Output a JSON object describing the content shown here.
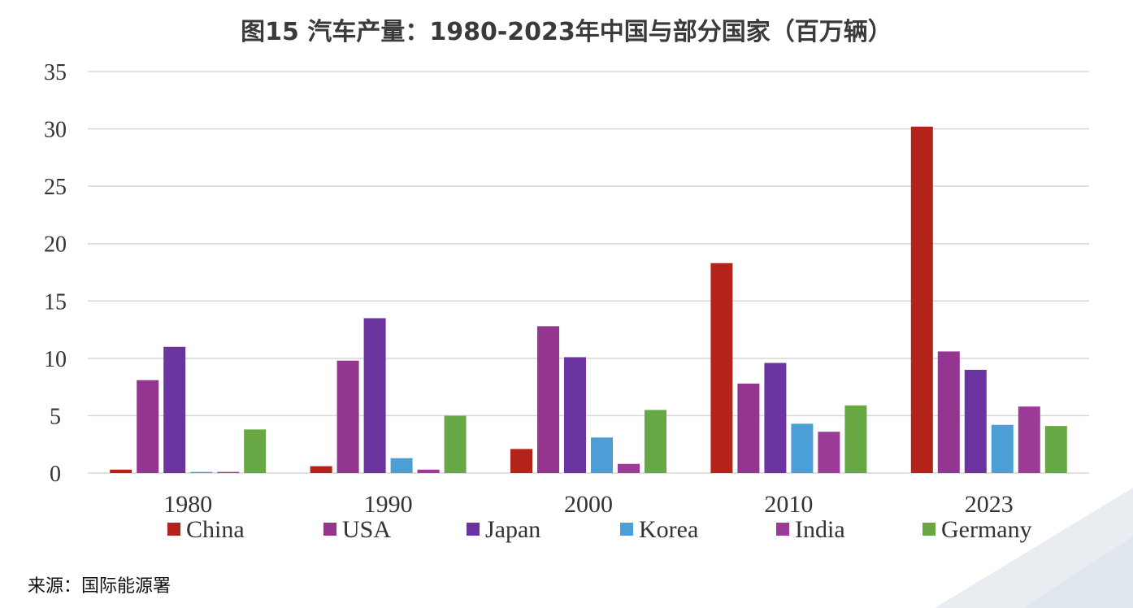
{
  "colors": {
    "China": "#b3231a",
    "USA": "#94368f",
    "Japan": "#6c34a0",
    "Korea": "#4b9fd6",
    "India": "#9b3a97",
    "Germany": "#67a844",
    "grid": "#d6d6d6",
    "axis_text": "#333333"
  },
  "chart_data": {
    "type": "bar",
    "title": "图15 汽车产量：1980-2023年中国与部分国家（百万辆）",
    "categories": [
      "1980",
      "1990",
      "2000",
      "2010",
      "2023"
    ],
    "series": [
      {
        "name": "China",
        "values": [
          0.3,
          0.6,
          2.1,
          18.3,
          30.2
        ]
      },
      {
        "name": "USA",
        "values": [
          8.1,
          9.8,
          12.8,
          7.8,
          10.6
        ]
      },
      {
        "name": "Japan",
        "values": [
          11.0,
          13.5,
          10.1,
          9.6,
          9.0
        ]
      },
      {
        "name": "Korea",
        "values": [
          0.1,
          1.3,
          3.1,
          4.3,
          4.2
        ]
      },
      {
        "name": "India",
        "values": [
          0.1,
          0.3,
          0.8,
          3.6,
          5.8
        ]
      },
      {
        "name": "Germany",
        "values": [
          3.8,
          5.0,
          5.5,
          5.9,
          4.1
        ]
      }
    ],
    "ylim": [
      0,
      35
    ],
    "yticks": [
      0,
      5,
      10,
      15,
      20,
      25,
      30,
      35
    ],
    "xlabel": "",
    "ylabel": "",
    "grid": true,
    "legend": "bottom"
  },
  "source": "来源：国际能源署"
}
